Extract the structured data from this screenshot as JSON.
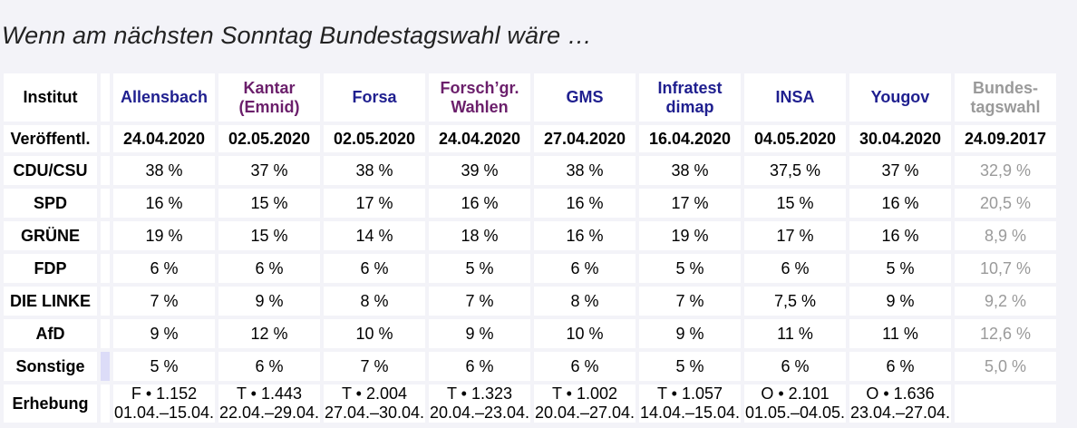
{
  "title": "Wenn am nächsten Sonntag Bundestagswahl wäre …",
  "row_labels": {
    "institut": "Institut",
    "published": "Veröffentl.",
    "survey": "Erhebung"
  },
  "institutes": [
    {
      "name": "Allensbach",
      "line2": "",
      "color": "#1f1f8f"
    },
    {
      "name": "Kantar",
      "line2": "(Emnid)",
      "color": "#6b1f6b"
    },
    {
      "name": "Forsa",
      "line2": "",
      "color": "#1f1f8f"
    },
    {
      "name": "Forsch’gr.",
      "line2": "Wahlen",
      "color": "#6b1f6b"
    },
    {
      "name": "GMS",
      "line2": "",
      "color": "#1f1f8f"
    },
    {
      "name": "Infratest",
      "line2": "dimap",
      "color": "#1f1f8f"
    },
    {
      "name": "INSA",
      "line2": "",
      "color": "#1f1f8f"
    },
    {
      "name": "Yougov",
      "line2": "",
      "color": "#1f1f8f"
    }
  ],
  "election": {
    "line1": "Bundes-",
    "line2": "tagswahl",
    "date": "24.09.2017"
  },
  "published_dates": [
    "24.04.2020",
    "02.05.2020",
    "02.05.2020",
    "24.04.2020",
    "27.04.2020",
    "16.04.2020",
    "04.05.2020",
    "30.04.2020"
  ],
  "highlight_color": "#f8c0c0",
  "highlighted_dates": [
    false,
    true,
    true,
    false,
    false,
    false,
    true,
    false
  ],
  "parties": [
    {
      "name": "CDU/CSU",
      "values": [
        "38 %",
        "37 %",
        "38 %",
        "39 %",
        "38 %",
        "38 %",
        "37,5 %",
        "37 %"
      ],
      "election": "32,9 %"
    },
    {
      "name": "SPD",
      "values": [
        "16 %",
        "15 %",
        "17 %",
        "16 %",
        "16 %",
        "17 %",
        "15 %",
        "16 %"
      ],
      "election": "20,5 %"
    },
    {
      "name": "GRÜNE",
      "values": [
        "19 %",
        "15 %",
        "14 %",
        "18 %",
        "16 %",
        "19 %",
        "17 %",
        "16 %"
      ],
      "election": "8,9 %"
    },
    {
      "name": "FDP",
      "values": [
        "6 %",
        "6 %",
        "6 %",
        "5 %",
        "6 %",
        "5 %",
        "6 %",
        "5 %"
      ],
      "election": "10,7 %"
    },
    {
      "name": "DIE LINKE",
      "values": [
        "7 %",
        "9 %",
        "8 %",
        "7 %",
        "8 %",
        "7 %",
        "7,5 %",
        "9 %"
      ],
      "election": "9,2 %"
    },
    {
      "name": "AfD",
      "values": [
        "9 %",
        "12 %",
        "10 %",
        "9 %",
        "10 %",
        "9 %",
        "11 %",
        "11 %"
      ],
      "election": "12,6 %"
    },
    {
      "name": "Sonstige",
      "values": [
        "5 %",
        "6 %",
        "7 %",
        "6 %",
        "6 %",
        "5 %",
        "6 %",
        "6 %"
      ],
      "election": "5,0 %"
    }
  ],
  "surveys": [
    {
      "method": "F • 1.152",
      "period": "01.04.–15.04."
    },
    {
      "method": "T • 1.443",
      "period": "22.04.–29.04."
    },
    {
      "method": "T • 2.004",
      "period": "27.04.–30.04."
    },
    {
      "method": "T • 1.323",
      "period": "20.04.–23.04."
    },
    {
      "method": "T • 1.002",
      "period": "20.04.–27.04."
    },
    {
      "method": "T • 1.057",
      "period": "14.04.–15.04."
    },
    {
      "method": "O • 2.101",
      "period": "01.05.–04.05."
    },
    {
      "method": "O • 1.636",
      "period": "23.04.–27.04."
    }
  ]
}
